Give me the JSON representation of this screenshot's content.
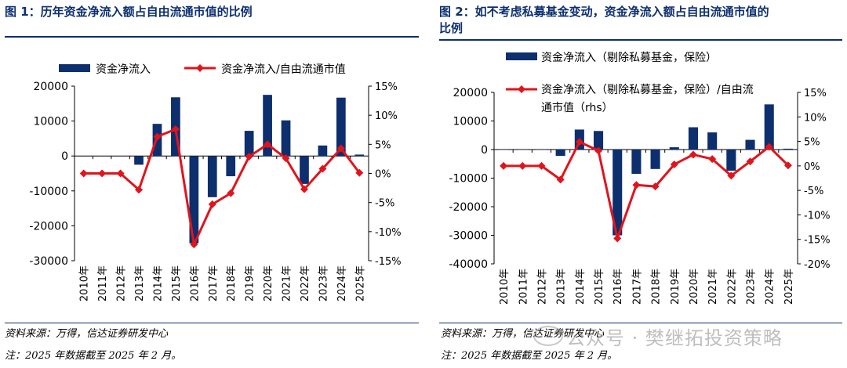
{
  "left": {
    "title": "图 1：历年资金净流入额占自由流通市值的比例",
    "source": "资料来源：万得，信达证券研发中心",
    "note": "注：2025 年数据截至 2025 年 2 月。"
  },
  "right": {
    "title_line1": "图 2：如不考虑私募基金变动，资金净流入额占自由流通市值的",
    "title_line2": "比例",
    "source": "资料来源：万得，信达证券研发中心",
    "note": "注：2025 年数据截至 2025 年 2 月。"
  },
  "watermark": "公众号 · 樊继拓投资策略",
  "colors": {
    "bar": "#0d2f6e",
    "line": "#e0141c",
    "title": "#0d2f6e"
  },
  "chart_data": [
    {
      "type": "bar+line",
      "categories": [
        "2010年",
        "2011年",
        "2012年",
        "2013年",
        "2014年",
        "2015年",
        "2016年",
        "2017年",
        "2018年",
        "2019年",
        "2020年",
        "2021年",
        "2022年",
        "2023年",
        "2024年",
        "2025年"
      ],
      "series": [
        {
          "name": "资金净流入",
          "type": "bar",
          "axis": "left",
          "values": [
            0,
            0,
            0,
            -2500,
            9200,
            16800,
            -25000,
            -11800,
            -5800,
            7200,
            17500,
            10200,
            -8000,
            3000,
            16700,
            400
          ]
        },
        {
          "name": "资金净流入/自由流通市值",
          "type": "line",
          "axis": "right",
          "values": [
            0,
            0,
            0,
            -2.8,
            6.3,
            7.6,
            -12.2,
            -5.3,
            -3.4,
            2.9,
            5.0,
            2.6,
            -2.7,
            0.8,
            4.3,
            0.1
          ]
        }
      ],
      "ylim_left": [
        -30000,
        20000
      ],
      "yticks_left": [
        "20000",
        "10000",
        "0",
        "-10000",
        "-20000",
        "-30000"
      ],
      "ylim_right": [
        -15,
        15
      ],
      "yticks_right": [
        "15%",
        "10%",
        "5%",
        "0%",
        "-5%",
        "-10%",
        "-15%"
      ],
      "legend_position": "top"
    },
    {
      "type": "bar+line",
      "categories": [
        "2010年",
        "2011年",
        "2012年",
        "2013年",
        "2014年",
        "2015年",
        "2016年",
        "2017年",
        "2018年",
        "2019年",
        "2020年",
        "2021年",
        "2022年",
        "2023年",
        "2024年",
        "2025年"
      ],
      "series": [
        {
          "name": "资金净流入（剔除私募基金，保险）",
          "type": "bar",
          "axis": "left",
          "values": [
            0,
            0,
            0,
            -2200,
            7000,
            6500,
            -30000,
            -8500,
            -6800,
            800,
            7800,
            6000,
            -7400,
            3400,
            15800,
            300
          ]
        },
        {
          "name": "资金净流入（剔除私募基金，保险）/自由流通市值（rhs）",
          "legend_line1": "资金净流入（剔除私募基金，保险）/自由流",
          "legend_line2": "通市值（rhs）",
          "type": "line",
          "axis": "right",
          "values": [
            0,
            0,
            0,
            -2.8,
            4.9,
            3.1,
            -14.8,
            -3.9,
            -4.2,
            0.3,
            2.3,
            1.4,
            -2.0,
            0.9,
            3.9,
            0.1
          ]
        }
      ],
      "ylim_left": [
        -40000,
        20000
      ],
      "yticks_left": [
        "20000",
        "10000",
        "0",
        "-10000",
        "-20000",
        "-30000",
        "-40000"
      ],
      "ylim_right": [
        -20,
        15
      ],
      "yticks_right": [
        "15%",
        "10%",
        "5%",
        "0%",
        "-5%",
        "-10%",
        "-15%",
        "-20%"
      ],
      "legend_position": "top"
    }
  ]
}
